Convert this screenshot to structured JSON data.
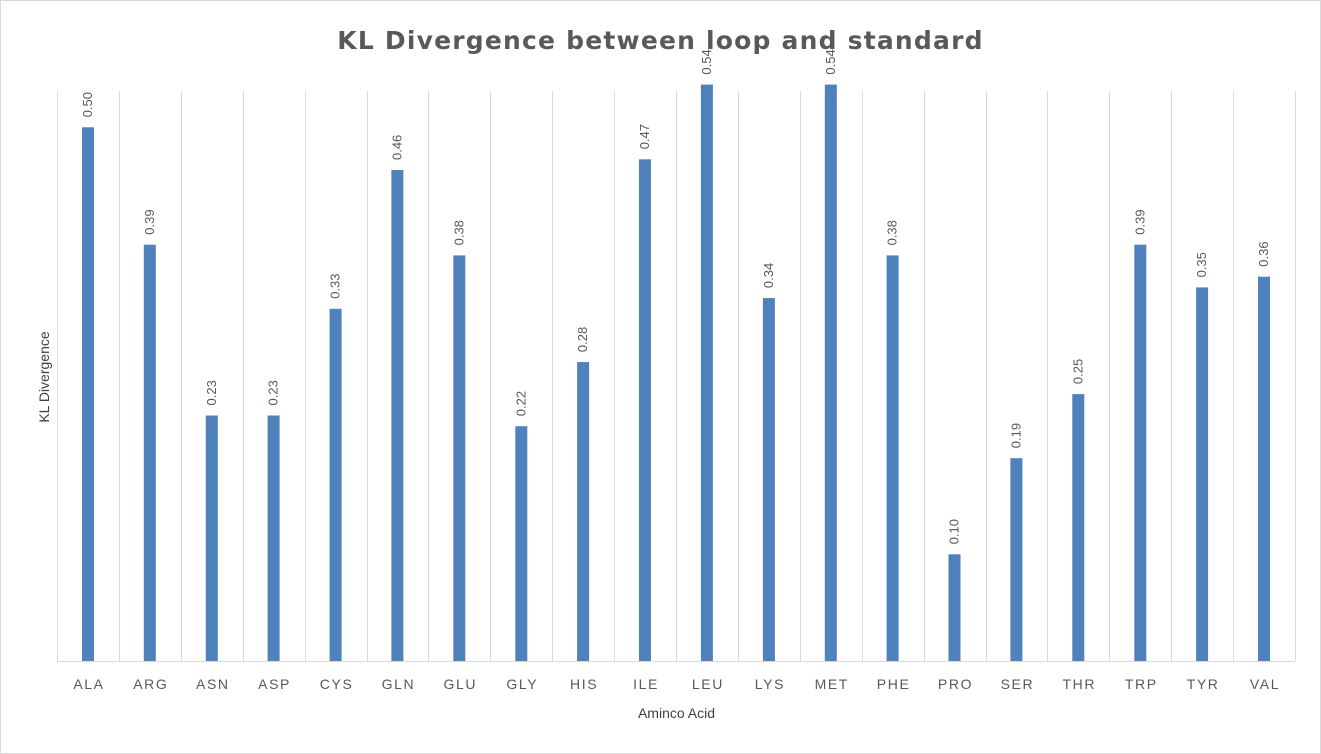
{
  "chart_data": {
    "type": "bar",
    "title": "KL Divergence between loop and standard",
    "xlabel": "Aminco Acid",
    "ylabel": "KL Divergence",
    "categories": [
      "ALA",
      "ARG",
      "ASN",
      "ASP",
      "CYS",
      "GLN",
      "GLU",
      "GLY",
      "HIS",
      "ILE",
      "LEU",
      "LYS",
      "MET",
      "PHE",
      "PRO",
      "SER",
      "THR",
      "TRP",
      "TYR",
      "VAL"
    ],
    "values": [
      0.5,
      0.39,
      0.23,
      0.23,
      0.33,
      0.46,
      0.38,
      0.22,
      0.28,
      0.47,
      0.54,
      0.34,
      0.54,
      0.38,
      0.1,
      0.19,
      0.25,
      0.39,
      0.35,
      0.36
    ],
    "data_labels": [
      "0.50",
      "0.39",
      "0.23",
      "0.23",
      "0.33",
      "0.46",
      "0.38",
      "0.22",
      "0.28",
      "0.47",
      "0.54",
      "0.34",
      "0.54",
      "0.38",
      "0.10",
      "0.19",
      "0.25",
      "0.39",
      "0.35",
      "0.36"
    ],
    "ylim": [
      0,
      0.534
    ],
    "grid": "vertical",
    "legend": "none",
    "colors": {
      "bar": "#4f81bd",
      "grid": "#d9d9d9",
      "axis": "#d9d9d9"
    }
  }
}
